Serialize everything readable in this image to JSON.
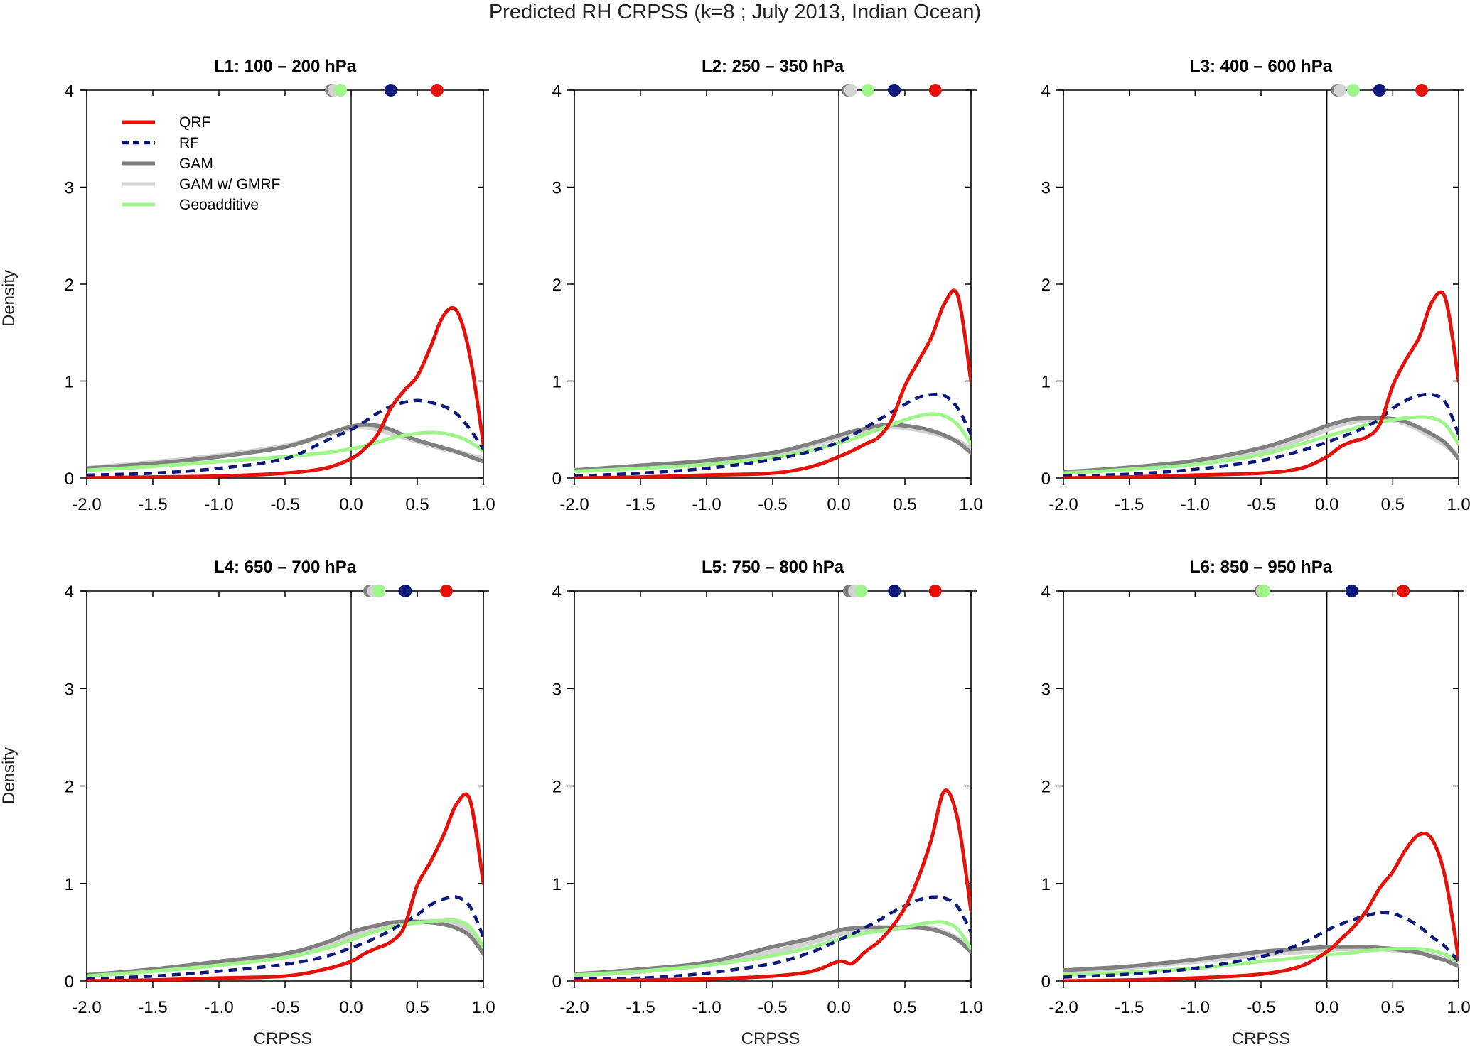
{
  "figure": {
    "title": "Predicted RH CRPSS (k=8 ; July 2013, Indian Ocean)",
    "xlabel": "CRPSS",
    "ylabel": "Density"
  },
  "legend": {
    "placement": "top-left of first panel",
    "entries": [
      {
        "name": "QRF",
        "color": "#e3120b",
        "style": "solid"
      },
      {
        "name": "RF",
        "color": "#0d1a7a",
        "style": "dashed"
      },
      {
        "name": "GAM",
        "color": "#808080",
        "style": "solid"
      },
      {
        "name": "GAM w/ GMRF",
        "color": "#d3d3d3",
        "style": "solid"
      },
      {
        "name": "Geoadditive",
        "color": "#9ef58a",
        "style": "solid"
      }
    ]
  },
  "colors": {
    "QRF": "#e3120b",
    "RF": "#0d1a7a",
    "GAM": "#808080",
    "GAM w/ GMRF": "#d3d3d3",
    "Geoadditive": "#9ef58a",
    "axis": "#000000"
  },
  "chart_data": [
    {
      "type": "line",
      "title": "L1: 100 – 200 hPa",
      "xlim": [
        -2.0,
        1.0
      ],
      "ylim": [
        0,
        4
      ],
      "xticks": [
        "-2.0",
        "-1.5",
        "-1.0",
        "-0.5",
        "0.0",
        "0.5",
        "1.0"
      ],
      "yticks": [
        "0",
        "1",
        "2",
        "3",
        "4"
      ],
      "x": [
        -2.0,
        -1.5,
        -1.0,
        -0.5,
        -0.2,
        0.0,
        0.1,
        0.2,
        0.3,
        0.4,
        0.5,
        0.6,
        0.7,
        0.8,
        0.9,
        1.0
      ],
      "series": [
        {
          "name": "GAM w/ GMRF",
          "values": [
            0.1,
            0.16,
            0.23,
            0.33,
            0.44,
            0.52,
            0.53,
            0.5,
            0.46,
            0.42,
            0.38,
            0.34,
            0.3,
            0.27,
            0.23,
            0.2
          ]
        },
        {
          "name": "GAM",
          "values": [
            0.1,
            0.15,
            0.22,
            0.32,
            0.45,
            0.53,
            0.55,
            0.54,
            0.5,
            0.44,
            0.39,
            0.35,
            0.31,
            0.27,
            0.22,
            0.17
          ]
        },
        {
          "name": "Geoadditive",
          "values": [
            0.08,
            0.12,
            0.17,
            0.22,
            0.26,
            0.3,
            0.33,
            0.37,
            0.41,
            0.44,
            0.46,
            0.47,
            0.46,
            0.43,
            0.37,
            0.28
          ]
        },
        {
          "name": "RF",
          "values": [
            0.03,
            0.05,
            0.1,
            0.2,
            0.38,
            0.5,
            0.58,
            0.67,
            0.74,
            0.78,
            0.8,
            0.78,
            0.74,
            0.66,
            0.5,
            0.3
          ]
        },
        {
          "name": "QRF",
          "values": [
            0.0,
            0.01,
            0.02,
            0.05,
            0.1,
            0.2,
            0.3,
            0.45,
            0.72,
            0.9,
            1.05,
            1.35,
            1.68,
            1.72,
            1.25,
            0.35
          ]
        }
      ],
      "markers": [
        {
          "name": "GAM",
          "x": -0.15
        },
        {
          "name": "GAM w/ GMRF",
          "x": -0.13
        },
        {
          "name": "Geoadditive",
          "x": -0.08
        },
        {
          "name": "RF",
          "x": 0.3
        },
        {
          "name": "QRF",
          "x": 0.65
        }
      ]
    },
    {
      "type": "line",
      "title": "L2: 250 – 350 hPa",
      "xlim": [
        -2.0,
        1.0
      ],
      "ylim": [
        0,
        4
      ],
      "xticks": [
        "-2.0",
        "-1.5",
        "-1.0",
        "-0.5",
        "0.0",
        "0.5",
        "1.0"
      ],
      "yticks": [
        "0",
        "1",
        "2",
        "3",
        "4"
      ],
      "x": [
        -2.0,
        -1.5,
        -1.0,
        -0.5,
        -0.2,
        0.0,
        0.1,
        0.2,
        0.3,
        0.4,
        0.5,
        0.6,
        0.7,
        0.8,
        0.9,
        1.0
      ],
      "series": [
        {
          "name": "GAM w/ GMRF",
          "values": [
            0.08,
            0.12,
            0.17,
            0.25,
            0.34,
            0.42,
            0.46,
            0.49,
            0.52,
            0.53,
            0.52,
            0.5,
            0.47,
            0.43,
            0.38,
            0.3
          ]
        },
        {
          "name": "GAM",
          "values": [
            0.08,
            0.13,
            0.18,
            0.26,
            0.36,
            0.44,
            0.48,
            0.51,
            0.54,
            0.55,
            0.54,
            0.52,
            0.49,
            0.44,
            0.37,
            0.26
          ]
        },
        {
          "name": "Geoadditive",
          "values": [
            0.07,
            0.1,
            0.14,
            0.21,
            0.29,
            0.36,
            0.4,
            0.45,
            0.5,
            0.55,
            0.6,
            0.64,
            0.66,
            0.64,
            0.55,
            0.35
          ]
        },
        {
          "name": "RF",
          "values": [
            0.02,
            0.05,
            0.1,
            0.19,
            0.28,
            0.37,
            0.44,
            0.52,
            0.6,
            0.68,
            0.76,
            0.83,
            0.86,
            0.85,
            0.72,
            0.45
          ]
        },
        {
          "name": "QRF",
          "values": [
            0.0,
            0.01,
            0.03,
            0.05,
            0.12,
            0.22,
            0.28,
            0.35,
            0.42,
            0.6,
            0.95,
            1.2,
            1.45,
            1.8,
            1.88,
            1.0
          ]
        }
      ],
      "markers": [
        {
          "name": "GAM",
          "x": 0.07
        },
        {
          "name": "GAM w/ GMRF",
          "x": 0.09
        },
        {
          "name": "Geoadditive",
          "x": 0.22
        },
        {
          "name": "RF",
          "x": 0.42
        },
        {
          "name": "QRF",
          "x": 0.73
        }
      ]
    },
    {
      "type": "line",
      "title": "L3: 400 – 600 hPa",
      "xlim": [
        -2.0,
        1.0
      ],
      "ylim": [
        0,
        4
      ],
      "xticks": [
        "-2.0",
        "-1.5",
        "-1.0",
        "-0.5",
        "0.0",
        "0.5",
        "1.0"
      ],
      "yticks": [
        "0",
        "1",
        "2",
        "3",
        "4"
      ],
      "x": [
        -2.0,
        -1.5,
        -1.0,
        -0.5,
        -0.2,
        0.0,
        0.1,
        0.2,
        0.3,
        0.4,
        0.5,
        0.6,
        0.7,
        0.8,
        0.9,
        1.0
      ],
      "series": [
        {
          "name": "GAM w/ GMRF",
          "values": [
            0.06,
            0.1,
            0.16,
            0.28,
            0.4,
            0.5,
            0.55,
            0.58,
            0.6,
            0.61,
            0.6,
            0.56,
            0.5,
            0.42,
            0.34,
            0.22
          ]
        },
        {
          "name": "GAM",
          "values": [
            0.06,
            0.11,
            0.18,
            0.31,
            0.44,
            0.54,
            0.58,
            0.61,
            0.62,
            0.62,
            0.61,
            0.58,
            0.52,
            0.45,
            0.36,
            0.2
          ]
        },
        {
          "name": "Geoadditive",
          "values": [
            0.05,
            0.09,
            0.14,
            0.24,
            0.35,
            0.43,
            0.47,
            0.51,
            0.55,
            0.58,
            0.6,
            0.62,
            0.63,
            0.62,
            0.55,
            0.35
          ]
        },
        {
          "name": "RF",
          "values": [
            0.02,
            0.04,
            0.09,
            0.18,
            0.28,
            0.37,
            0.42,
            0.47,
            0.53,
            0.61,
            0.72,
            0.8,
            0.85,
            0.86,
            0.78,
            0.45
          ]
        },
        {
          "name": "QRF",
          "values": [
            0.0,
            0.01,
            0.03,
            0.05,
            0.1,
            0.22,
            0.32,
            0.38,
            0.42,
            0.55,
            0.95,
            1.22,
            1.45,
            1.82,
            1.85,
            1.0
          ]
        }
      ],
      "markers": [
        {
          "name": "GAM",
          "x": 0.08
        },
        {
          "name": "GAM w/ GMRF",
          "x": 0.1
        },
        {
          "name": "Geoadditive",
          "x": 0.2
        },
        {
          "name": "RF",
          "x": 0.4
        },
        {
          "name": "QRF",
          "x": 0.72
        }
      ]
    },
    {
      "type": "line",
      "title": "L4: 650 – 700 hPa",
      "xlim": [
        -2.0,
        1.0
      ],
      "ylim": [
        0,
        4
      ],
      "xticks": [
        "-2.0",
        "-1.5",
        "-1.0",
        "-0.5",
        "0.0",
        "0.5",
        "1.0"
      ],
      "yticks": [
        "0",
        "1",
        "2",
        "3",
        "4"
      ],
      "x": [
        -2.0,
        -1.5,
        -1.0,
        -0.5,
        -0.2,
        0.0,
        0.1,
        0.2,
        0.3,
        0.4,
        0.5,
        0.6,
        0.7,
        0.8,
        0.9,
        1.0
      ],
      "series": [
        {
          "name": "GAM w/ GMRF",
          "values": [
            0.06,
            0.11,
            0.18,
            0.26,
            0.36,
            0.46,
            0.5,
            0.54,
            0.57,
            0.59,
            0.6,
            0.61,
            0.61,
            0.58,
            0.5,
            0.32
          ]
        },
        {
          "name": "GAM",
          "values": [
            0.06,
            0.12,
            0.2,
            0.28,
            0.39,
            0.5,
            0.54,
            0.57,
            0.6,
            0.61,
            0.61,
            0.6,
            0.58,
            0.54,
            0.46,
            0.28
          ]
        },
        {
          "name": "Geoadditive",
          "values": [
            0.05,
            0.1,
            0.16,
            0.24,
            0.33,
            0.42,
            0.47,
            0.51,
            0.55,
            0.58,
            0.6,
            0.61,
            0.62,
            0.62,
            0.55,
            0.35
          ]
        },
        {
          "name": "RF",
          "values": [
            0.02,
            0.05,
            0.1,
            0.17,
            0.25,
            0.34,
            0.39,
            0.45,
            0.52,
            0.6,
            0.68,
            0.78,
            0.84,
            0.86,
            0.76,
            0.45
          ]
        },
        {
          "name": "QRF",
          "values": [
            0.0,
            0.01,
            0.03,
            0.05,
            0.12,
            0.2,
            0.28,
            0.34,
            0.4,
            0.55,
            0.98,
            1.22,
            1.5,
            1.82,
            1.85,
            1.0
          ]
        }
      ],
      "markers": [
        {
          "name": "GAM",
          "x": 0.14
        },
        {
          "name": "GAM w/ GMRF",
          "x": 0.17
        },
        {
          "name": "Geoadditive",
          "x": 0.21
        },
        {
          "name": "RF",
          "x": 0.41
        },
        {
          "name": "QRF",
          "x": 0.72
        }
      ]
    },
    {
      "type": "line",
      "title": "L5: 750 – 800 hPa",
      "xlim": [
        -2.0,
        1.0
      ],
      "ylim": [
        0,
        4
      ],
      "xticks": [
        "-2.0",
        "-1.5",
        "-1.0",
        "-0.5",
        "0.0",
        "0.5",
        "1.0"
      ],
      "yticks": [
        "0",
        "1",
        "2",
        "3",
        "4"
      ],
      "x": [
        -2.0,
        -1.5,
        -1.0,
        -0.5,
        -0.2,
        0.0,
        0.1,
        0.2,
        0.3,
        0.4,
        0.5,
        0.6,
        0.7,
        0.8,
        0.9,
        1.0
      ],
      "series": [
        {
          "name": "GAM w/ GMRF",
          "values": [
            0.06,
            0.1,
            0.17,
            0.3,
            0.4,
            0.48,
            0.5,
            0.52,
            0.53,
            0.54,
            0.55,
            0.55,
            0.54,
            0.5,
            0.43,
            0.33
          ]
        },
        {
          "name": "GAM",
          "values": [
            0.07,
            0.12,
            0.19,
            0.35,
            0.44,
            0.52,
            0.54,
            0.55,
            0.55,
            0.55,
            0.55,
            0.55,
            0.53,
            0.49,
            0.42,
            0.3
          ]
        },
        {
          "name": "Geoadditive",
          "values": [
            0.06,
            0.1,
            0.16,
            0.26,
            0.35,
            0.43,
            0.46,
            0.49,
            0.51,
            0.53,
            0.55,
            0.58,
            0.6,
            0.6,
            0.53,
            0.33
          ]
        },
        {
          "name": "RF",
          "values": [
            0.02,
            0.03,
            0.08,
            0.18,
            0.3,
            0.42,
            0.48,
            0.55,
            0.62,
            0.7,
            0.77,
            0.83,
            0.86,
            0.85,
            0.76,
            0.5
          ]
        },
        {
          "name": "QRF",
          "values": [
            0.0,
            0.01,
            0.02,
            0.05,
            0.1,
            0.2,
            0.18,
            0.3,
            0.4,
            0.55,
            0.75,
            1.05,
            1.45,
            1.95,
            1.65,
            0.72
          ]
        }
      ],
      "markers": [
        {
          "name": "GAM",
          "x": 0.08
        },
        {
          "name": "GAM w/ GMRF",
          "x": 0.12
        },
        {
          "name": "Geoadditive",
          "x": 0.17
        },
        {
          "name": "RF",
          "x": 0.42
        },
        {
          "name": "QRF",
          "x": 0.73
        }
      ]
    },
    {
      "type": "line",
      "title": "L6: 850 – 950 hPa",
      "xlim": [
        -2.0,
        1.0
      ],
      "ylim": [
        0,
        4
      ],
      "xticks": [
        "-2.0",
        "-1.5",
        "-1.0",
        "-0.5",
        "0.0",
        "0.5",
        "1.0"
      ],
      "yticks": [
        "0",
        "1",
        "2",
        "3",
        "4"
      ],
      "x": [
        -2.0,
        -1.5,
        -1.0,
        -0.5,
        -0.2,
        0.0,
        0.1,
        0.2,
        0.3,
        0.4,
        0.5,
        0.6,
        0.7,
        0.8,
        0.9,
        1.0
      ],
      "series": [
        {
          "name": "GAM w/ GMRF",
          "values": [
            0.1,
            0.14,
            0.2,
            0.27,
            0.3,
            0.32,
            0.33,
            0.33,
            0.33,
            0.33,
            0.32,
            0.31,
            0.29,
            0.26,
            0.22,
            0.16
          ]
        },
        {
          "name": "GAM",
          "values": [
            0.11,
            0.15,
            0.22,
            0.3,
            0.33,
            0.35,
            0.35,
            0.35,
            0.35,
            0.34,
            0.33,
            0.31,
            0.29,
            0.25,
            0.21,
            0.15
          ]
        },
        {
          "name": "Geoadditive",
          "values": [
            0.06,
            0.09,
            0.13,
            0.2,
            0.24,
            0.27,
            0.28,
            0.29,
            0.31,
            0.32,
            0.33,
            0.33,
            0.33,
            0.31,
            0.27,
            0.2
          ]
        },
        {
          "name": "RF",
          "values": [
            0.04,
            0.07,
            0.13,
            0.25,
            0.38,
            0.52,
            0.58,
            0.63,
            0.67,
            0.7,
            0.69,
            0.64,
            0.56,
            0.45,
            0.35,
            0.2
          ]
        },
        {
          "name": "QRF",
          "values": [
            0.0,
            0.01,
            0.03,
            0.07,
            0.15,
            0.3,
            0.42,
            0.55,
            0.72,
            0.95,
            1.12,
            1.35,
            1.5,
            1.45,
            1.05,
            0.22
          ]
        }
      ],
      "markers": [
        {
          "name": "GAM",
          "x": -0.5
        },
        {
          "name": "GAM w/ GMRF",
          "x": -0.49
        },
        {
          "name": "Geoadditive",
          "x": -0.48
        },
        {
          "name": "RF",
          "x": 0.19
        },
        {
          "name": "QRF",
          "x": 0.58
        }
      ]
    }
  ]
}
